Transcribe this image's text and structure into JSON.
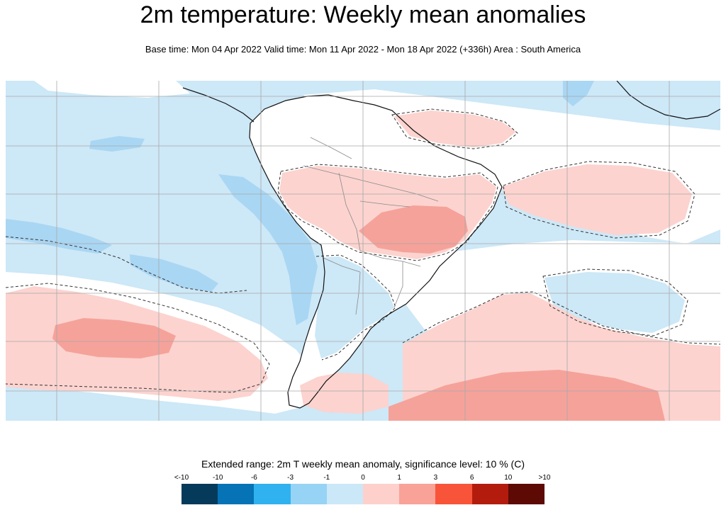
{
  "title": "2m temperature: Weekly mean anomalies",
  "subtitle": "Base time: Mon 04 Apr 2022 Valid time: Mon 11 Apr 2022 - Mon 18 Apr 2022 (+336h) Area : South America",
  "map": {
    "region": "South America",
    "colors": {
      "ocean_base": "#cde8f7",
      "cold_strong": "#a9d6f3",
      "warm_light": "#fcd3cf",
      "warm_mid": "#f5a29a",
      "land_neutral": "#ffffff",
      "coast": "#111111",
      "border": "#8a8a8a",
      "contour": "#333333",
      "grid": "#a8a8a8"
    }
  },
  "legend": {
    "title": "Extended range: 2m T weekly mean anomaly, significance level: 10 % (C)",
    "ticks": [
      "<-10",
      "-10",
      "-6",
      "-3",
      "-1",
      "0",
      "1",
      "3",
      "6",
      "10",
      ">10"
    ],
    "colors": [
      "#063a5b",
      "#0573b5",
      "#30b2f0",
      "#97d3f5",
      "#cbe8f9",
      "#fdd0cc",
      "#f9a297",
      "#f8543a",
      "#b31c0d",
      "#5d0904"
    ]
  }
}
